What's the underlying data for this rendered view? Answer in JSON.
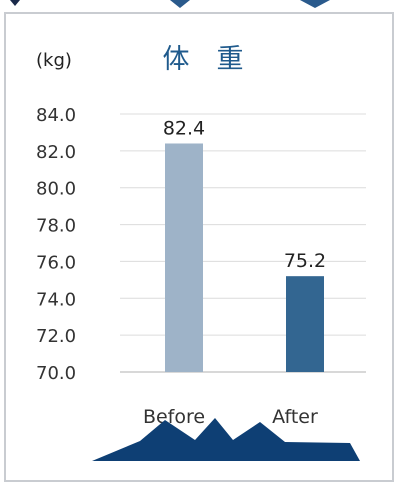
{
  "chart_data": {
    "type": "bar",
    "title": "体　重",
    "unit_label": "(kg)",
    "categories": [
      "Before",
      "After"
    ],
    "values": [
      82.4,
      75.2
    ],
    "value_labels": [
      "82.4",
      "75.2"
    ],
    "ylim": [
      70,
      84
    ],
    "yticks": [
      "70.0",
      "72.0",
      "74.0",
      "76.0",
      "78.0",
      "80.0",
      "82.0",
      "84.0"
    ],
    "grid": true,
    "colors": [
      "#9eb3c8",
      "#336691"
    ],
    "title_color": "#1f5a8c"
  }
}
